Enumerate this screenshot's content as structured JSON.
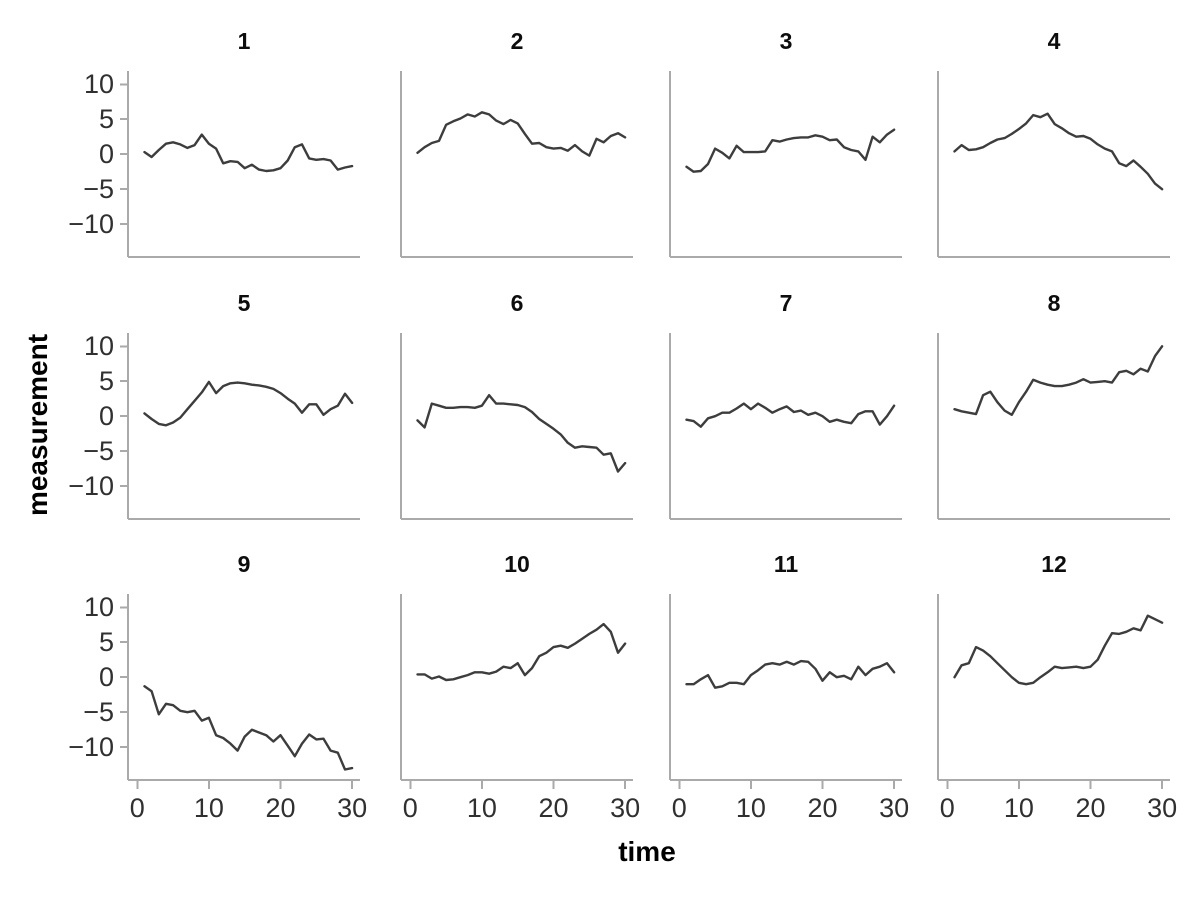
{
  "figure": {
    "y_axis_title": "measurement",
    "x_axis_title": "time",
    "line_color": "#3d3d3d",
    "axis_color": "#aaaaaa",
    "tick_text_color": "#303030",
    "title_color": "#0d0d0d",
    "background_color": "#ffffff"
  },
  "chart_data": {
    "type": "line",
    "layout": "facet-grid-3-rows-4-cols",
    "title": "",
    "xlabel": "time",
    "ylabel": "measurement",
    "x": [
      1,
      2,
      3,
      4,
      5,
      6,
      7,
      8,
      9,
      10,
      11,
      12,
      13,
      14,
      15,
      16,
      17,
      18,
      19,
      20,
      21,
      22,
      23,
      24,
      25,
      26,
      27,
      28,
      29,
      30
    ],
    "x_ticks": [
      0,
      10,
      20,
      30
    ],
    "x_tick_labels": [
      "0",
      "10",
      "20",
      "30"
    ],
    "y_ticks": [
      10,
      5,
      0,
      -5,
      -10
    ],
    "y_tick_labels": [
      "10",
      "5",
      "0",
      "−5",
      "−10"
    ],
    "xlim": [
      -1.3,
      31.1
    ],
    "ylim": [
      -14.7,
      11.9
    ],
    "grid": "off",
    "legend": "none",
    "series": [
      {
        "name": "1",
        "values": [
          0.3,
          -0.4,
          0.6,
          1.5,
          1.7,
          1.4,
          0.9,
          1.3,
          2.8,
          1.5,
          0.8,
          -1.3,
          -1.0,
          -1.1,
          -2.0,
          -1.5,
          -2.2,
          -2.4,
          -2.3,
          -2.0,
          -0.9,
          1.0,
          1.4,
          -0.6,
          -0.8,
          -0.7,
          -0.9,
          -2.2,
          -1.9,
          -1.7
        ]
      },
      {
        "name": "2",
        "values": [
          0.2,
          1.0,
          1.6,
          1.9,
          4.2,
          4.7,
          5.1,
          5.7,
          5.4,
          6.0,
          5.7,
          4.8,
          4.3,
          4.9,
          4.4,
          2.9,
          1.5,
          1.6,
          1.0,
          0.8,
          0.9,
          0.5,
          1.3,
          0.4,
          -0.2,
          2.2,
          1.7,
          2.6,
          3.0,
          2.4
        ]
      },
      {
        "name": "3",
        "values": [
          -1.8,
          -2.5,
          -2.4,
          -1.4,
          0.8,
          0.2,
          -0.6,
          1.2,
          0.3,
          0.3,
          0.3,
          0.4,
          2.0,
          1.8,
          2.1,
          2.3,
          2.4,
          2.4,
          2.7,
          2.5,
          2.0,
          2.1,
          1.0,
          0.6,
          0.4,
          -0.8,
          2.5,
          1.7,
          2.8,
          3.5
        ]
      },
      {
        "name": "4",
        "values": [
          0.4,
          1.3,
          0.6,
          0.7,
          1.0,
          1.6,
          2.1,
          2.3,
          2.9,
          3.6,
          4.4,
          5.6,
          5.3,
          5.8,
          4.3,
          3.7,
          3.0,
          2.5,
          2.6,
          2.2,
          1.4,
          0.8,
          0.4,
          -1.3,
          -1.7,
          -0.9,
          -1.8,
          -2.8,
          -4.2,
          -5.0
        ]
      },
      {
        "name": "5",
        "values": [
          0.4,
          -0.4,
          -1.1,
          -1.3,
          -0.9,
          -0.2,
          1.0,
          2.2,
          3.4,
          4.9,
          3.3,
          4.3,
          4.7,
          4.8,
          4.7,
          4.5,
          4.4,
          4.2,
          3.9,
          3.3,
          2.5,
          1.8,
          0.5,
          1.7,
          1.7,
          0.2,
          1.0,
          1.5,
          3.2,
          1.9
        ]
      },
      {
        "name": "6",
        "values": [
          -0.6,
          -1.6,
          1.8,
          1.5,
          1.2,
          1.2,
          1.3,
          1.3,
          1.2,
          1.5,
          3.0,
          1.8,
          1.8,
          1.7,
          1.6,
          1.3,
          0.6,
          -0.4,
          -1.1,
          -1.8,
          -2.6,
          -3.8,
          -4.5,
          -4.3,
          -4.4,
          -4.5,
          -5.5,
          -5.3,
          -7.9,
          -6.7
        ]
      },
      {
        "name": "7",
        "values": [
          -0.5,
          -0.7,
          -1.5,
          -0.3,
          0.0,
          0.5,
          0.5,
          1.1,
          1.8,
          1.0,
          1.8,
          1.2,
          0.5,
          1.0,
          1.4,
          0.6,
          0.8,
          0.2,
          0.5,
          0.0,
          -0.8,
          -0.5,
          -0.8,
          -1.0,
          0.3,
          0.7,
          0.7,
          -1.2,
          0.0,
          1.5
        ]
      },
      {
        "name": "8",
        "values": [
          1.0,
          0.7,
          0.5,
          0.3,
          3.0,
          3.5,
          2.0,
          0.8,
          0.2,
          2.0,
          3.5,
          5.2,
          4.8,
          4.5,
          4.3,
          4.3,
          4.5,
          4.8,
          5.3,
          4.8,
          4.9,
          5.0,
          4.8,
          6.3,
          6.5,
          6.0,
          6.8,
          6.4,
          8.6,
          10.0
        ]
      },
      {
        "name": "9",
        "values": [
          -1.3,
          -2.0,
          -5.3,
          -3.8,
          -4.0,
          -4.8,
          -5.0,
          -4.8,
          -6.2,
          -5.8,
          -8.3,
          -8.7,
          -9.5,
          -10.5,
          -8.5,
          -7.5,
          -7.9,
          -8.3,
          -9.2,
          -8.3,
          -9.8,
          -11.3,
          -9.5,
          -8.2,
          -8.9,
          -8.8,
          -10.5,
          -10.8,
          -13.2,
          -13.0
        ]
      },
      {
        "name": "10",
        "values": [
          0.4,
          0.4,
          -0.2,
          0.1,
          -0.4,
          -0.3,
          0.0,
          0.3,
          0.7,
          0.7,
          0.5,
          0.8,
          1.5,
          1.3,
          2.0,
          0.3,
          1.3,
          3.0,
          3.5,
          4.3,
          4.5,
          4.2,
          4.8,
          5.5,
          6.2,
          6.8,
          7.6,
          6.5,
          3.5,
          4.8
        ]
      },
      {
        "name": "11",
        "values": [
          -1.0,
          -1.0,
          -0.3,
          0.3,
          -1.5,
          -1.3,
          -0.8,
          -0.8,
          -1.0,
          0.3,
          1.0,
          1.8,
          2.0,
          1.8,
          2.2,
          1.8,
          2.3,
          2.2,
          1.2,
          -0.5,
          0.7,
          0.0,
          0.2,
          -0.3,
          1.5,
          0.3,
          1.2,
          1.5,
          2.0,
          0.7
        ]
      },
      {
        "name": "12",
        "values": [
          0.0,
          1.7,
          2.0,
          4.3,
          3.8,
          3.0,
          2.0,
          1.0,
          0.0,
          -0.8,
          -1.0,
          -0.8,
          0.0,
          0.7,
          1.5,
          1.3,
          1.4,
          1.5,
          1.3,
          1.5,
          2.5,
          4.5,
          6.3,
          6.2,
          6.5,
          7.0,
          6.7,
          8.8,
          8.3,
          7.8
        ]
      }
    ]
  }
}
